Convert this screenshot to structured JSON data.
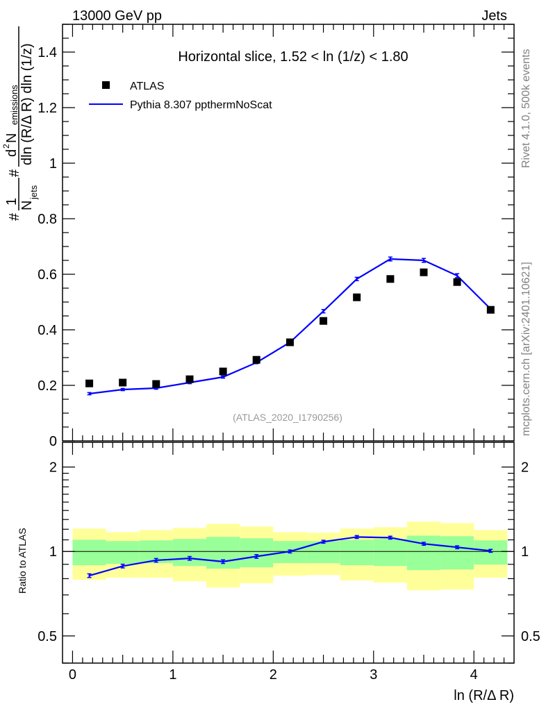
{
  "header": {
    "left": "13000 GeV pp",
    "right": "Jets"
  },
  "side_text": {
    "rivet": "Rivet 4.1.0,  500k events",
    "mcplots": "mcplots.cern.ch [arXiv:2401.10621]"
  },
  "colors": {
    "data": "#000000",
    "mc": "#0000ff",
    "band_inner": "#99ff99",
    "band_outer": "#ffff99",
    "watermark": "#999999",
    "side": "#808080"
  },
  "chart_data": [
    {
      "type": "scatter",
      "title": "Horizontal slice, 1.52 < ln (1/z) < 1.80",
      "watermark": "(ATLAS_2020_I1790256)",
      "ylabel_parts": {
        "hash1": "#",
        "one": "1",
        "njets": "N",
        "njets_sub": "jets",
        "hash2": "#",
        "num": "d",
        "num_sup": "2",
        "num_n": " N",
        "num_sub": "emissions",
        "den": "dln (R/Δ R) dln (1/z)"
      },
      "xlim": [
        -0.1,
        4.4
      ],
      "ylim": [
        0,
        1.5
      ],
      "yticks": [
        "0",
        "0.2",
        "0.4",
        "0.6",
        "0.8",
        "1",
        "1.2",
        "1.4"
      ],
      "legend_position": "top-left",
      "x": [
        0.167,
        0.5,
        0.833,
        1.167,
        1.5,
        1.833,
        2.167,
        2.5,
        2.833,
        3.167,
        3.5,
        3.833,
        4.167
      ],
      "series": [
        {
          "name": "ATLAS",
          "style": "markers",
          "values": [
            0.207,
            0.21,
            0.205,
            0.222,
            0.25,
            0.292,
            0.355,
            0.432,
            0.517,
            0.583,
            0.607,
            0.572,
            0.472
          ]
        },
        {
          "name": "Pythia 8.307 ppthermNoScat",
          "style": "line",
          "values": [
            0.17,
            0.185,
            0.19,
            0.21,
            0.23,
            0.282,
            0.355,
            0.467,
            0.583,
            0.655,
            0.65,
            0.595,
            0.475
          ],
          "errors": [
            0.004,
            0.004,
            0.004,
            0.004,
            0.004,
            0.004,
            0.005,
            0.006,
            0.006,
            0.007,
            0.007,
            0.007,
            0.007
          ]
        }
      ]
    },
    {
      "type": "line",
      "ylabel": "Ratio to ATLAS",
      "xlabel": "ln (R/Δ R)",
      "yscale": "log",
      "ylim": [
        0.4,
        2.45
      ],
      "xlim": [
        -0.1,
        4.4
      ],
      "xticks": [
        "0",
        "1",
        "2",
        "3",
        "4"
      ],
      "yticks": [
        "0.5",
        "1",
        "2"
      ],
      "bin_edges": [
        0,
        0.333,
        0.667,
        1,
        1.333,
        1.667,
        2,
        2.333,
        2.667,
        3,
        3.333,
        3.667,
        4,
        4.333
      ],
      "band_inner": {
        "hi": [
          1.101,
          1.089,
          1.095,
          1.108,
          1.127,
          1.114,
          1.089,
          1.089,
          1.101,
          1.108,
          1.139,
          1.133,
          1.095
        ],
        "lo": [
          0.893,
          0.903,
          0.908,
          0.887,
          0.868,
          0.878,
          0.908,
          0.908,
          0.893,
          0.887,
          0.858,
          0.863,
          0.898
        ]
      },
      "band_outer": {
        "hi": [
          1.206,
          1.172,
          1.192,
          1.213,
          1.255,
          1.227,
          1.172,
          1.166,
          1.206,
          1.22,
          1.277,
          1.262,
          1.192
        ],
        "lo": [
          0.792,
          0.806,
          0.806,
          0.783,
          0.744,
          0.77,
          0.82,
          0.824,
          0.788,
          0.774,
          0.727,
          0.732,
          0.806
        ]
      },
      "x": [
        0.167,
        0.5,
        0.833,
        1.167,
        1.5,
        1.833,
        2.167,
        2.5,
        2.833,
        3.167,
        3.5,
        3.833,
        4.167
      ],
      "values": [
        0.82,
        0.887,
        0.93,
        0.945,
        0.92,
        0.96,
        1.0,
        1.083,
        1.126,
        1.12,
        1.065,
        1.035,
        1.005
      ],
      "errors": [
        0.015,
        0.015,
        0.015,
        0.015,
        0.015,
        0.015,
        0.012,
        0.012,
        0.012,
        0.012,
        0.012,
        0.012,
        0.012
      ]
    }
  ]
}
